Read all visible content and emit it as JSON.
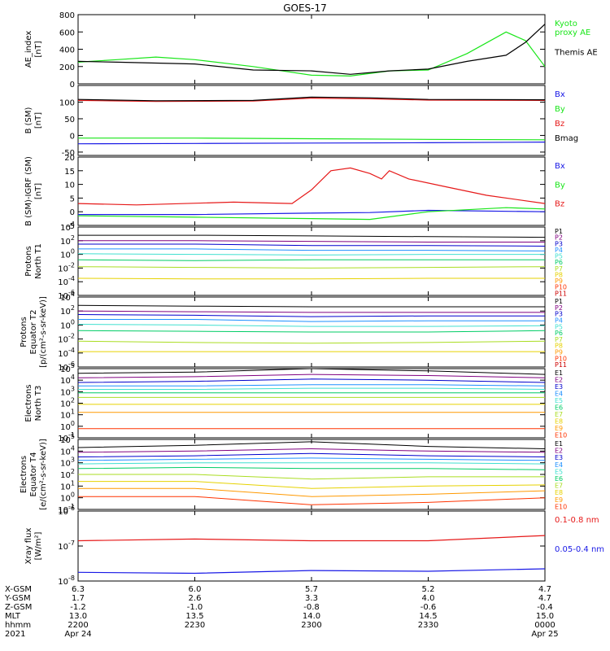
{
  "title": "GOES-17",
  "colors": {
    "black": "#000000",
    "green": "#19e619",
    "red": "#e61919",
    "blue": "#1919e6",
    "p": [
      "#000000",
      "#800080",
      "#0000cd",
      "#1e90ff",
      "#40e0d0",
      "#00cc66",
      "#aadd22",
      "#e6d200",
      "#ff9900",
      "#ff3300",
      "#cc0000"
    ],
    "e": [
      "#000000",
      "#800080",
      "#0000cd",
      "#1e90ff",
      "#40e0d0",
      "#00cc66",
      "#aadd22",
      "#e6d200",
      "#ff9900",
      "#ff3300"
    ]
  },
  "time_axis": {
    "start": "2021-04-24 22:00",
    "end": "2021-04-25 00:00",
    "ticks": [
      "2200",
      "2230",
      "2300",
      "2330",
      "0000"
    ]
  },
  "footer": {
    "rows": [
      {
        "label": "X-GSM",
        "values": [
          "6.3",
          "6.0",
          "5.7",
          "5.2",
          "4.7"
        ]
      },
      {
        "label": "Y-GSM",
        "values": [
          "1.7",
          "2.6",
          "3.3",
          "4.0",
          "4.7"
        ]
      },
      {
        "label": "Z-GSM",
        "values": [
          "-1.2",
          "-1.0",
          "-0.8",
          "-0.6",
          "-0.4"
        ]
      },
      {
        "label": "MLT",
        "values": [
          "13.0",
          "13.5",
          "14.0",
          "14.5",
          "15.0"
        ]
      },
      {
        "label": "hhmm",
        "values": [
          "2200",
          "2230",
          "2300",
          "2330",
          "0000"
        ]
      },
      {
        "label": "2021",
        "values": [
          "Apr 24",
          "",
          "",
          "",
          "Apr 25"
        ]
      }
    ]
  },
  "chart_data": [
    {
      "type": "line",
      "ylabel": "AE_index\n[nT]",
      "ylim": [
        0,
        800
      ],
      "scale": "linear",
      "yticks": [
        0,
        200,
        400,
        600,
        800
      ],
      "yticklabels": [
        "0",
        "200",
        "400",
        "600",
        "800"
      ],
      "series": [
        {
          "name": "Kyoto\nproxy AE",
          "color": "green",
          "points": [
            [
              "22:00",
              250
            ],
            [
              "22:10",
              280
            ],
            [
              "22:20",
              310
            ],
            [
              "22:30",
              280
            ],
            [
              "22:45",
              200
            ],
            [
              "23:00",
              100
            ],
            [
              "23:10",
              90
            ],
            [
              "23:20",
              150
            ],
            [
              "23:30",
              160
            ],
            [
              "23:40",
              350
            ],
            [
              "23:50",
              600
            ],
            [
              "23:55",
              500
            ],
            [
              "24:00",
              200
            ]
          ]
        },
        {
          "name": "Themis AE",
          "color": "black",
          "points": [
            [
              "22:00",
              260
            ],
            [
              "22:10",
              250
            ],
            [
              "22:20",
              240
            ],
            [
              "22:30",
              230
            ],
            [
              "22:45",
              160
            ],
            [
              "23:00",
              150
            ],
            [
              "23:10",
              110
            ],
            [
              "23:20",
              150
            ],
            [
              "23:30",
              170
            ],
            [
              "23:40",
              260
            ],
            [
              "23:50",
              330
            ],
            [
              "23:55",
              480
            ],
            [
              "24:00",
              690
            ]
          ]
        }
      ]
    },
    {
      "type": "line",
      "ylabel": "B (SM)\n[nT]",
      "ylim": [
        -60,
        150
      ],
      "scale": "linear",
      "yticks": [
        -50,
        0,
        50,
        100
      ],
      "yticklabels": [
        "-50",
        "0",
        "50",
        "100"
      ],
      "series": [
        {
          "name": "Bx",
          "color": "blue",
          "points": [
            [
              "22:00",
              -25
            ],
            [
              "22:30",
              -24
            ],
            [
              "23:00",
              -23
            ],
            [
              "23:30",
              -22
            ],
            [
              "24:00",
              -20
            ]
          ]
        },
        {
          "name": "By",
          "color": "green",
          "points": [
            [
              "22:00",
              -8
            ],
            [
              "22:30",
              -8
            ],
            [
              "23:00",
              -10
            ],
            [
              "23:30",
              -12
            ],
            [
              "24:00",
              -13
            ]
          ]
        },
        {
          "name": "Bz",
          "color": "red",
          "points": [
            [
              "22:00",
              105
            ],
            [
              "22:20",
              102
            ],
            [
              "22:45",
              103
            ],
            [
              "23:00",
              112
            ],
            [
              "23:15",
              110
            ],
            [
              "23:30",
              106
            ],
            [
              "24:00",
              105
            ]
          ]
        },
        {
          "name": "Bmag",
          "color": "black",
          "points": [
            [
              "22:00",
              108
            ],
            [
              "22:20",
              104
            ],
            [
              "22:45",
              105
            ],
            [
              "23:00",
              115
            ],
            [
              "23:15",
              113
            ],
            [
              "23:30",
              108
            ],
            [
              "24:00",
              107
            ]
          ]
        }
      ]
    },
    {
      "type": "line",
      "ylabel": "B (SM)-IGRF (SM)\n[nT]",
      "ylim": [
        -5,
        20
      ],
      "scale": "linear",
      "yticks": [
        -5,
        0,
        5,
        10,
        15,
        20
      ],
      "yticklabels": [
        "-5",
        "0",
        "5",
        "10",
        "15",
        "20"
      ],
      "series": [
        {
          "name": "Bx",
          "color": "blue",
          "points": [
            [
              "22:00",
              -1
            ],
            [
              "22:30",
              -1
            ],
            [
              "23:00",
              -0.5
            ],
            [
              "23:15",
              -0.3
            ],
            [
              "23:30",
              0.5
            ],
            [
              "24:00",
              0
            ]
          ]
        },
        {
          "name": "By",
          "color": "green",
          "points": [
            [
              "22:00",
              -1.5
            ],
            [
              "22:30",
              -2
            ],
            [
              "23:00",
              -2.5
            ],
            [
              "23:15",
              -2.8
            ],
            [
              "23:30",
              0
            ],
            [
              "23:50",
              1.5
            ],
            [
              "24:00",
              1
            ]
          ]
        },
        {
          "name": "Bz",
          "color": "red",
          "points": [
            [
              "22:00",
              3
            ],
            [
              "22:15",
              2.5
            ],
            [
              "22:40",
              3.5
            ],
            [
              "22:55",
              3
            ],
            [
              "23:00",
              8
            ],
            [
              "23:05",
              15
            ],
            [
              "23:10",
              16
            ],
            [
              "23:15",
              14
            ],
            [
              "23:18",
              12
            ],
            [
              "23:20",
              15
            ],
            [
              "23:25",
              12
            ],
            [
              "23:35",
              9
            ],
            [
              "23:45",
              6
            ],
            [
              "24:00",
              3
            ]
          ]
        }
      ]
    },
    {
      "type": "line",
      "ylabel": "Protons\nNorth T1",
      "ylim": [
        -6,
        4
      ],
      "scale": "log",
      "yunits": "log10",
      "yticks": [
        -6,
        -4,
        -2,
        0,
        2,
        4
      ],
      "yticklabels": [
        "10^-6",
        "10^-4",
        "10^-2",
        "10^0",
        "10^2",
        "10^4"
      ],
      "legend": [
        "P1",
        "P2",
        "P3",
        "P4",
        "P5",
        "P6",
        "P7",
        "P8",
        "P9",
        "P10",
        "P11"
      ],
      "series": [
        {
          "name": "P1",
          "levels": [
            2.8,
            2.8,
            2.7,
            2.6,
            2.5
          ]
        },
        {
          "name": "P2",
          "levels": [
            2.0,
            2.0,
            1.9,
            1.8,
            1.8
          ]
        },
        {
          "name": "P3",
          "levels": [
            1.5,
            1.5,
            1.3,
            1.3,
            1.2
          ]
        },
        {
          "name": "P4",
          "levels": [
            0.8,
            0.8,
            0.6,
            0.6,
            0.5
          ]
        },
        {
          "name": "P5",
          "levels": [
            0.1,
            0.0,
            -0.1,
            0.0,
            0.0
          ]
        },
        {
          "name": "P6",
          "levels": [
            -0.8,
            -0.9,
            -0.8,
            -0.8,
            -0.8
          ]
        },
        {
          "name": "P7",
          "levels": [
            -1.8,
            -1.9,
            -2.0,
            -1.9,
            -1.8
          ]
        },
        {
          "name": "P8",
          "levels": [
            -3.5,
            -3.6,
            -3.6,
            -3.5,
            -3.5
          ]
        }
      ]
    },
    {
      "type": "line",
      "ylabel": "Protons\nEquator T2\n[p/(cm²-s-sr-keV)]",
      "ylim": [
        -6,
        4
      ],
      "scale": "log",
      "yunits": "log10",
      "yticks": [
        -6,
        -4,
        -2,
        0,
        2,
        4
      ],
      "yticklabels": [
        "10^-6",
        "10^-4",
        "10^-2",
        "10^0",
        "10^2",
        "10^4"
      ],
      "legend": [
        "P1",
        "P2",
        "P3",
        "P4",
        "P5",
        "P6",
        "P7",
        "P8",
        "P9",
        "P10",
        "P11"
      ],
      "series": [
        {
          "name": "P1",
          "levels": [
            2.8,
            2.7,
            2.6,
            2.6,
            2.6
          ]
        },
        {
          "name": "P2",
          "levels": [
            2.0,
            1.9,
            1.8,
            1.8,
            1.8
          ]
        },
        {
          "name": "P3",
          "levels": [
            1.5,
            1.4,
            1.2,
            1.3,
            1.3
          ]
        },
        {
          "name": "P4",
          "levels": [
            0.8,
            0.8,
            0.5,
            0.6,
            0.6
          ]
        },
        {
          "name": "P5",
          "levels": [
            0.1,
            0.0,
            -0.2,
            -0.2,
            -0.1
          ]
        },
        {
          "name": "P6",
          "levels": [
            -0.8,
            -0.9,
            -1.0,
            -1.0,
            -0.8
          ]
        },
        {
          "name": "P7",
          "levels": [
            -2.3,
            -2.5,
            -2.6,
            -2.5,
            -2.3
          ]
        },
        {
          "name": "P8",
          "levels": [
            -3.8,
            -3.8,
            -3.8,
            -3.8,
            -3.8
          ]
        }
      ]
    },
    {
      "type": "line",
      "ylabel": "Electrons\nNorth T3",
      "ylim": [
        -1,
        5
      ],
      "scale": "log",
      "yunits": "log10",
      "yticks": [
        -1,
        0,
        1,
        2,
        3,
        4,
        5
      ],
      "yticklabels": [
        "10^-1",
        "10^0",
        "10^1",
        "10^2",
        "10^3",
        "10^4",
        "10^5"
      ],
      "legend": [
        "E1",
        "E2",
        "E3",
        "E4",
        "E5",
        "E6",
        "E7",
        "E8",
        "E9",
        "E10"
      ],
      "series": [
        {
          "name": "E1",
          "levels": [
            4.6,
            4.7,
            5.0,
            4.8,
            4.5
          ]
        },
        {
          "name": "E2",
          "levels": [
            4.2,
            4.3,
            4.5,
            4.4,
            4.2
          ]
        },
        {
          "name": "E3",
          "levels": [
            3.8,
            3.9,
            4.1,
            4.0,
            3.8
          ]
        },
        {
          "name": "E4",
          "levels": [
            3.5,
            3.5,
            3.6,
            3.6,
            3.5
          ]
        },
        {
          "name": "E5",
          "levels": [
            3.2,
            3.2,
            3.3,
            3.3,
            3.2
          ]
        },
        {
          "name": "E6",
          "levels": [
            2.9,
            2.9,
            2.9,
            2.9,
            2.9
          ]
        },
        {
          "name": "E7",
          "levels": [
            2.5,
            2.5,
            2.5,
            2.5,
            2.5
          ]
        },
        {
          "name": "E8",
          "levels": [
            1.9,
            1.9,
            1.9,
            1.9,
            1.9
          ]
        },
        {
          "name": "E9",
          "levels": [
            1.2,
            1.2,
            1.2,
            1.2,
            1.2
          ]
        },
        {
          "name": "E10",
          "levels": [
            -0.2,
            -0.2,
            -0.2,
            -0.2,
            -0.2
          ]
        }
      ]
    },
    {
      "type": "line",
      "ylabel": "Electrons\nEquator T4\n[e/(cm²-s-sr-keV)]",
      "ylim": [
        -1,
        5
      ],
      "scale": "log",
      "yunits": "log10",
      "yticks": [
        -1,
        0,
        1,
        2,
        3,
        4,
        5
      ],
      "yticklabels": [
        "10^-1",
        "10^0",
        "10^1",
        "10^2",
        "10^3",
        "10^4",
        "10^5"
      ],
      "legend": [
        "E1",
        "E2",
        "E3",
        "E4",
        "E5",
        "E6",
        "E7",
        "E8",
        "E9",
        "E10"
      ],
      "series": [
        {
          "name": "E1",
          "levels": [
            4.3,
            4.5,
            4.8,
            4.4,
            4.2
          ]
        },
        {
          "name": "E2",
          "levels": [
            3.9,
            4.0,
            4.2,
            4.0,
            3.9
          ]
        },
        {
          "name": "E3",
          "levels": [
            3.5,
            3.6,
            3.8,
            3.6,
            3.5
          ]
        },
        {
          "name": "E4",
          "levels": [
            3.2,
            3.3,
            3.4,
            3.3,
            3.2
          ]
        },
        {
          "name": "E5",
          "levels": [
            2.9,
            3.0,
            3.0,
            3.0,
            2.9
          ]
        },
        {
          "name": "E6",
          "levels": [
            2.5,
            2.6,
            2.5,
            2.5,
            2.4
          ]
        },
        {
          "name": "E7",
          "levels": [
            2.0,
            2.0,
            1.6,
            1.8,
            1.8
          ]
        },
        {
          "name": "E8",
          "levels": [
            1.4,
            1.4,
            0.8,
            1.0,
            1.1
          ]
        },
        {
          "name": "E9",
          "levels": [
            0.8,
            0.8,
            0.1,
            0.3,
            0.6
          ]
        },
        {
          "name": "E10",
          "levels": [
            0.1,
            0.1,
            -0.6,
            -0.4,
            0.0
          ]
        }
      ]
    },
    {
      "type": "line",
      "ylabel": "Xray flux\n[W/m²]",
      "ylim": [
        -8,
        -6
      ],
      "scale": "log",
      "yunits": "log10",
      "yticks": [
        -8,
        -7,
        -6
      ],
      "yticklabels": [
        "10^-8",
        "10^-7",
        "10^-6"
      ],
      "series": [
        {
          "name": "0.1-0.8 nm",
          "color": "red",
          "points": [
            [
              "22:00",
              -6.85
            ],
            [
              "22:30",
              -6.8
            ],
            [
              "23:00",
              -6.85
            ],
            [
              "23:30",
              -6.85
            ],
            [
              "24:00",
              -6.7
            ]
          ]
        },
        {
          "name": "0.05-0.4 nm",
          "color": "blue",
          "points": [
            [
              "22:00",
              -7.75
            ],
            [
              "22:30",
              -7.78
            ],
            [
              "23:00",
              -7.7
            ],
            [
              "23:30",
              -7.72
            ],
            [
              "24:00",
              -7.65
            ]
          ]
        }
      ]
    }
  ]
}
